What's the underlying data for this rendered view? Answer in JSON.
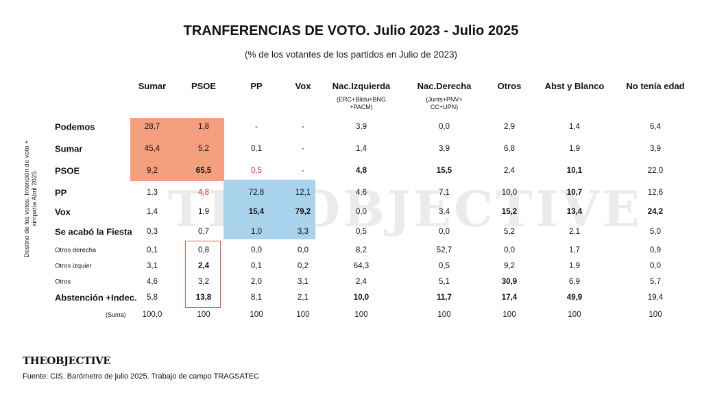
{
  "title": "TRANFERENCIAS DE  VOTO. Julio 2023 - Julio 2025",
  "subtitle": "(% de los votantes de los partidos en Julio de 2023)",
  "y_axis_label_line1": "Destino de los votos. Intención de voto +",
  "y_axis_label_line2": "simpatía Abril 2025",
  "watermark": "THEOBJECTIVE",
  "logo": {
    "part1": "THE",
    "part2": "OBJECTIVE"
  },
  "source": "Fuente: CIS. Barómetro de julio 2025. Trabajo de campo TRAGSATEC",
  "colors": {
    "orange_highlight": "#f4a07f",
    "blue_highlight": "#a9d2ed",
    "red_text": "#e32c1c",
    "red_box": "#e8594a"
  },
  "chart_data": {
    "type": "table",
    "columns": [
      {
        "label": "Sumar",
        "sub": []
      },
      {
        "label": "PSOE",
        "sub": []
      },
      {
        "label": "PP",
        "sub": []
      },
      {
        "label": "Vox",
        "sub": []
      },
      {
        "label": "Nac.Izquierda",
        "sub": [
          "(ERC+Bildu+BNG",
          "+PACM)"
        ]
      },
      {
        "label": "Nac.Derecha",
        "sub": [
          "(Junts+PNV+",
          "CC+UPN)"
        ]
      },
      {
        "label": "Otros",
        "sub": []
      },
      {
        "label": "Abst y Blanco",
        "sub": []
      },
      {
        "label": "No tenía edad",
        "sub": []
      }
    ],
    "rows": [
      {
        "label": "Podemos",
        "style": "main",
        "values": [
          "28,7",
          "1,8",
          "-",
          "-",
          "3,9",
          "0,0",
          "2,9",
          "1,4",
          "6,4"
        ],
        "bold": [],
        "red": []
      },
      {
        "label": "Sumar",
        "style": "main",
        "values": [
          "45,4",
          "5,2",
          "0,1",
          "-",
          "1,4",
          "3,9",
          "6,8",
          "1,9",
          "3,9"
        ],
        "bold": [],
        "red": []
      },
      {
        "label": "PSOE",
        "style": "main",
        "values": [
          "9,2",
          "65,5",
          "0,5",
          "-",
          "4,8",
          "15,5",
          "2,4",
          "10,1",
          "22,0"
        ],
        "bold": [
          1,
          4,
          5,
          7
        ],
        "red": [
          2
        ]
      },
      {
        "label": "PP",
        "style": "main",
        "values": [
          "1,3",
          "4,8",
          "72,8",
          "12,1",
          "4,6",
          "7,1",
          "10,0",
          "10,7",
          "12,6"
        ],
        "bold": [
          7
        ],
        "red": [
          1
        ]
      },
      {
        "label": "Vox",
        "style": "main",
        "values": [
          "1,4",
          "1,9",
          "15,4",
          "79,2",
          "0,0",
          "3,4",
          "15,2",
          "13,4",
          "24,2"
        ],
        "bold": [
          2,
          3,
          6,
          7,
          8
        ],
        "red": []
      },
      {
        "label": "Se acabó la Fiesta",
        "style": "main",
        "values": [
          "0,3",
          "0,7",
          "1,0",
          "3,3",
          "0,5",
          "0,0",
          "5,2",
          "2,1",
          "5,0"
        ],
        "bold": [],
        "red": []
      },
      {
        "label": "Otros derecha",
        "style": "small",
        "values": [
          "0,1",
          "0,8",
          "0,0",
          "0,0",
          "8,2",
          "52,7",
          "0,0",
          "1,7",
          "0,9"
        ],
        "bold": [],
        "red": []
      },
      {
        "label": "Otros izquier",
        "style": "small",
        "values": [
          "3,1",
          "2,4",
          "0,1",
          "0,2",
          "64,3",
          "0,5",
          "9,2",
          "1,9",
          "0,0"
        ],
        "bold": [
          1
        ],
        "red": []
      },
      {
        "label": "Otros",
        "style": "small",
        "values": [
          "4,6",
          "3,2",
          "2,0",
          "3,1",
          "2,4",
          "5,1",
          "30,9",
          "6,9",
          "5,7"
        ],
        "bold": [
          6
        ],
        "red": []
      },
      {
        "label": "Abstención +Indec.",
        "style": "main",
        "values": [
          "5,8",
          "13,8",
          "8,1",
          "2,1",
          "10,0",
          "11,7",
          "17,4",
          "49,9",
          "19,4"
        ],
        "bold": [
          1,
          4,
          5,
          6,
          7
        ],
        "red": []
      },
      {
        "label": "(Suma)",
        "style": "sum",
        "values": [
          "100,0",
          "100",
          "100",
          "100",
          "100",
          "100",
          "100",
          "100",
          "100"
        ],
        "bold": [],
        "red": []
      }
    ]
  }
}
